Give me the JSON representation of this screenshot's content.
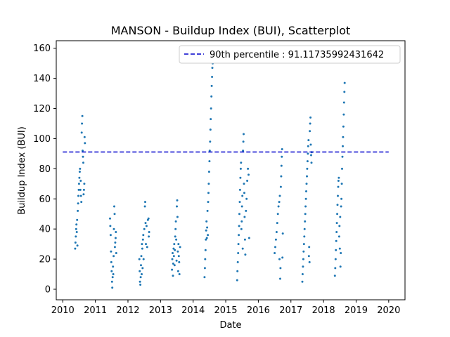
{
  "chart_data": {
    "type": "scatter",
    "title": "MANSON - Buildup Index (BUI), Scatterplot",
    "xlabel": "Date",
    "ylabel": "Buildup Index (BUI)",
    "xlim": [
      2009.8,
      2020.5
    ],
    "ylim": [
      -7,
      165
    ],
    "x_ticks": [
      2010,
      2011,
      2012,
      2013,
      2014,
      2015,
      2016,
      2017,
      2018,
      2019,
      2020
    ],
    "y_ticks": [
      0,
      20,
      40,
      60,
      80,
      100,
      120,
      140,
      160
    ],
    "grid": false,
    "legend_position": "top-right",
    "point_color": "#1f77b4",
    "reference_color": "#0000cc",
    "reference_line": {
      "label": "90th percentile : 91.11735992431642",
      "value": 91.11735992431642,
      "x_start": 2010,
      "x_end": 2020,
      "style": "dashed"
    },
    "series": [
      {
        "values": [
          [
            2010.38,
            27
          ],
          [
            2010.39,
            31
          ],
          [
            2010.4,
            35
          ],
          [
            2010.41,
            40
          ],
          [
            2010.42,
            43
          ],
          [
            2010.43,
            38
          ],
          [
            2010.44,
            46
          ],
          [
            2010.45,
            29
          ],
          [
            2010.46,
            52
          ],
          [
            2010.47,
            57
          ],
          [
            2010.48,
            62
          ],
          [
            2010.49,
            66
          ],
          [
            2010.5,
            70
          ],
          [
            2010.51,
            74
          ],
          [
            2010.52,
            78
          ],
          [
            2010.53,
            80
          ],
          [
            2010.54,
            66
          ],
          [
            2010.55,
            72
          ],
          [
            2010.56,
            62
          ],
          [
            2010.57,
            58
          ],
          [
            2010.58,
            104
          ],
          [
            2010.59,
            110
          ],
          [
            2010.6,
            115
          ],
          [
            2010.61,
            92
          ],
          [
            2010.62,
            88
          ],
          [
            2010.63,
            84
          ],
          [
            2010.64,
            63
          ],
          [
            2010.65,
            66
          ],
          [
            2010.66,
            70
          ],
          [
            2010.67,
            101
          ],
          [
            2010.68,
            97
          ],
          [
            2011.45,
            47
          ],
          [
            2011.46,
            42
          ],
          [
            2011.47,
            36
          ],
          [
            2011.48,
            25
          ],
          [
            2011.49,
            18
          ],
          [
            2011.5,
            12
          ],
          [
            2011.51,
            5
          ],
          [
            2011.52,
            1
          ],
          [
            2011.53,
            8
          ],
          [
            2011.54,
            15
          ],
          [
            2011.55,
            10
          ],
          [
            2011.56,
            22
          ],
          [
            2011.57,
            40
          ],
          [
            2011.58,
            55
          ],
          [
            2011.59,
            50
          ],
          [
            2011.6,
            28
          ],
          [
            2011.61,
            31
          ],
          [
            2011.62,
            34
          ],
          [
            2011.63,
            38
          ],
          [
            2011.64,
            24
          ],
          [
            2012.35,
            20
          ],
          [
            2012.36,
            12
          ],
          [
            2012.37,
            5
          ],
          [
            2012.38,
            3
          ],
          [
            2012.39,
            8
          ],
          [
            2012.4,
            16
          ],
          [
            2012.41,
            22
          ],
          [
            2012.42,
            10
          ],
          [
            2012.43,
            30
          ],
          [
            2012.44,
            27
          ],
          [
            2012.45,
            14
          ],
          [
            2012.46,
            33
          ],
          [
            2012.47,
            36
          ],
          [
            2012.48,
            20
          ],
          [
            2012.5,
            40
          ],
          [
            2012.52,
            55
          ],
          [
            2012.53,
            58
          ],
          [
            2012.54,
            44
          ],
          [
            2012.55,
            30
          ],
          [
            2012.57,
            42
          ],
          [
            2012.59,
            28
          ],
          [
            2012.61,
            46
          ],
          [
            2012.63,
            47
          ],
          [
            2012.64,
            35
          ],
          [
            2012.65,
            38
          ],
          [
            2013.35,
            13
          ],
          [
            2013.36,
            20
          ],
          [
            2013.37,
            24
          ],
          [
            2013.38,
            9
          ],
          [
            2013.39,
            17
          ],
          [
            2013.4,
            27
          ],
          [
            2013.41,
            22
          ],
          [
            2013.42,
            30
          ],
          [
            2013.43,
            16
          ],
          [
            2013.44,
            26
          ],
          [
            2013.45,
            35
          ],
          [
            2013.46,
            40
          ],
          [
            2013.47,
            45
          ],
          [
            2013.48,
            33
          ],
          [
            2013.49,
            19
          ],
          [
            2013.5,
            55
          ],
          [
            2013.51,
            59
          ],
          [
            2013.52,
            48
          ],
          [
            2013.53,
            25
          ],
          [
            2013.54,
            12
          ],
          [
            2013.55,
            30
          ],
          [
            2013.56,
            22
          ],
          [
            2013.57,
            18
          ],
          [
            2013.58,
            10
          ],
          [
            2013.6,
            28
          ],
          [
            2014.35,
            8
          ],
          [
            2014.36,
            14
          ],
          [
            2014.37,
            20
          ],
          [
            2014.38,
            26
          ],
          [
            2014.39,
            33
          ],
          [
            2014.4,
            39
          ],
          [
            2014.41,
            45
          ],
          [
            2014.42,
            34
          ],
          [
            2014.43,
            41
          ],
          [
            2014.44,
            52
          ],
          [
            2014.45,
            36
          ],
          [
            2014.46,
            58
          ],
          [
            2014.47,
            64
          ],
          [
            2014.48,
            70
          ],
          [
            2014.49,
            78
          ],
          [
            2014.5,
            85
          ],
          [
            2014.51,
            92
          ],
          [
            2014.52,
            98
          ],
          [
            2014.53,
            106
          ],
          [
            2014.54,
            113
          ],
          [
            2014.55,
            120
          ],
          [
            2014.56,
            128
          ],
          [
            2014.57,
            135
          ],
          [
            2014.58,
            141
          ],
          [
            2014.59,
            147
          ],
          [
            2014.6,
            150
          ],
          [
            2015.35,
            6
          ],
          [
            2015.36,
            12
          ],
          [
            2015.37,
            18
          ],
          [
            2015.38,
            24
          ],
          [
            2015.39,
            30
          ],
          [
            2015.4,
            36
          ],
          [
            2015.41,
            42
          ],
          [
            2015.42,
            50
          ],
          [
            2015.43,
            58
          ],
          [
            2015.44,
            66
          ],
          [
            2015.45,
            74
          ],
          [
            2015.46,
            80
          ],
          [
            2015.47,
            84
          ],
          [
            2015.48,
            40
          ],
          [
            2015.49,
            45
          ],
          [
            2015.5,
            55
          ],
          [
            2015.51,
            62
          ],
          [
            2015.52,
            27
          ],
          [
            2015.53,
            92
          ],
          [
            2015.54,
            98
          ],
          [
            2015.55,
            103
          ],
          [
            2015.56,
            70
          ],
          [
            2015.57,
            64
          ],
          [
            2015.58,
            48
          ],
          [
            2015.59,
            33
          ],
          [
            2015.6,
            23
          ],
          [
            2015.62,
            52
          ],
          [
            2015.64,
            60
          ],
          [
            2015.66,
            72
          ],
          [
            2015.68,
            80
          ],
          [
            2015.7,
            76
          ],
          [
            2015.72,
            34
          ],
          [
            2016.5,
            24
          ],
          [
            2016.52,
            28
          ],
          [
            2016.54,
            33
          ],
          [
            2016.56,
            38
          ],
          [
            2016.58,
            44
          ],
          [
            2016.6,
            50
          ],
          [
            2016.62,
            55
          ],
          [
            2016.64,
            58
          ],
          [
            2016.65,
            20
          ],
          [
            2016.66,
            62
          ],
          [
            2016.67,
            7
          ],
          [
            2016.68,
            14
          ],
          [
            2016.69,
            68
          ],
          [
            2016.7,
            75
          ],
          [
            2016.71,
            82
          ],
          [
            2016.72,
            88
          ],
          [
            2016.73,
            93
          ],
          [
            2016.74,
            21
          ],
          [
            2016.75,
            37
          ],
          [
            2017.35,
            5
          ],
          [
            2017.36,
            10
          ],
          [
            2017.37,
            15
          ],
          [
            2017.38,
            20
          ],
          [
            2017.39,
            25
          ],
          [
            2017.4,
            30
          ],
          [
            2017.41,
            35
          ],
          [
            2017.42,
            40
          ],
          [
            2017.43,
            45
          ],
          [
            2017.44,
            50
          ],
          [
            2017.45,
            55
          ],
          [
            2017.46,
            60
          ],
          [
            2017.47,
            65
          ],
          [
            2017.48,
            70
          ],
          [
            2017.49,
            75
          ],
          [
            2017.5,
            80
          ],
          [
            2017.51,
            85
          ],
          [
            2017.52,
            90
          ],
          [
            2017.53,
            95
          ],
          [
            2017.54,
            99
          ],
          [
            2017.55,
            22
          ],
          [
            2017.56,
            28
          ],
          [
            2017.57,
            18
          ],
          [
            2017.58,
            105
          ],
          [
            2017.59,
            110
          ],
          [
            2017.6,
            114
          ],
          [
            2017.61,
            96
          ],
          [
            2017.62,
            89
          ],
          [
            2017.63,
            84
          ],
          [
            2017.64,
            91
          ],
          [
            2018.35,
            9
          ],
          [
            2018.36,
            14
          ],
          [
            2018.37,
            20
          ],
          [
            2018.38,
            26
          ],
          [
            2018.39,
            32
          ],
          [
            2018.4,
            38
          ],
          [
            2018.41,
            44
          ],
          [
            2018.42,
            50
          ],
          [
            2018.43,
            56
          ],
          [
            2018.44,
            62
          ],
          [
            2018.45,
            68
          ],
          [
            2018.46,
            72
          ],
          [
            2018.47,
            74
          ],
          [
            2018.48,
            35
          ],
          [
            2018.49,
            42
          ],
          [
            2018.5,
            27
          ],
          [
            2018.51,
            48
          ],
          [
            2018.52,
            15
          ],
          [
            2018.53,
            24
          ],
          [
            2018.54,
            55
          ],
          [
            2018.55,
            60
          ],
          [
            2018.56,
            70
          ],
          [
            2018.57,
            80
          ],
          [
            2018.58,
            88
          ],
          [
            2018.59,
            95
          ],
          [
            2018.6,
            101
          ],
          [
            2018.61,
            108
          ],
          [
            2018.62,
            116
          ],
          [
            2018.63,
            124
          ],
          [
            2018.64,
            131
          ],
          [
            2018.65,
            137
          ]
        ]
      }
    ]
  }
}
